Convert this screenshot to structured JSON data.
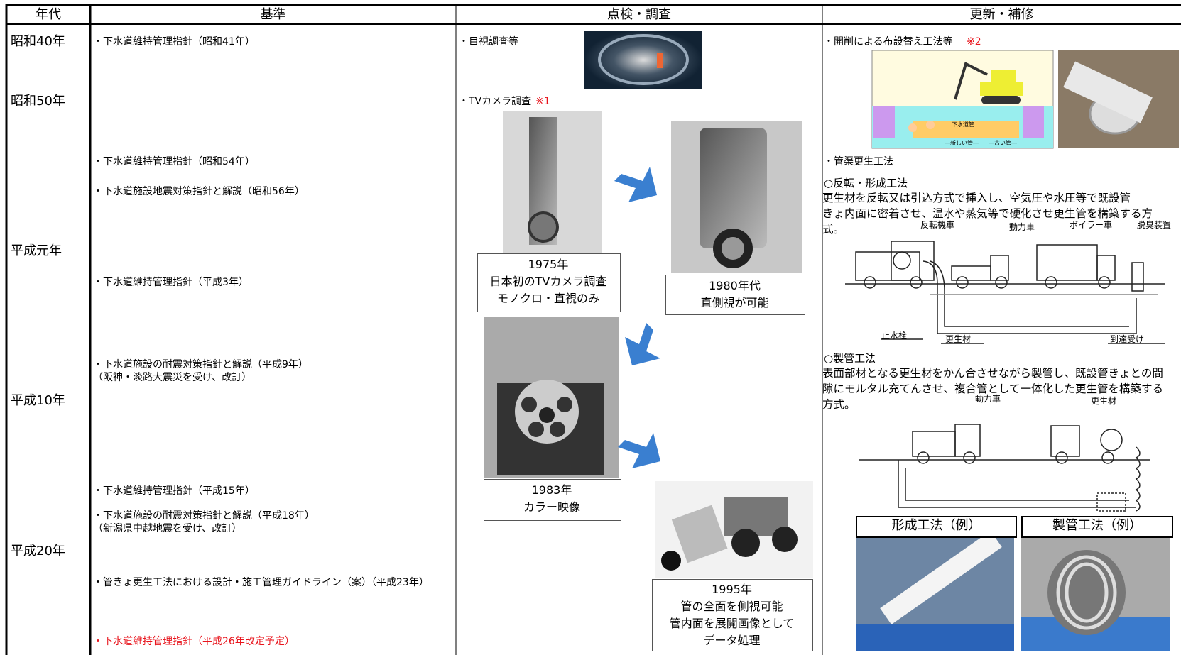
{
  "header": [
    "年代",
    "基準",
    "点検・調査",
    "更新・補修"
  ],
  "eras": [
    "昭和40年",
    "昭和50年",
    "平成元年",
    "平成10年",
    "平成20年"
  ],
  "standards": [
    [
      "・下水道維持管理指針（昭和41年）"
    ],
    [
      "・下水道維持管理指針（昭和54年）"
    ],
    [
      "・下水道施設地震対策指針と解説（昭和56年）"
    ],
    [
      "・下水道維持管理指針（平成3年）"
    ],
    [
      "・下水道施設の耐震対策指針と解説（平成9年）",
      "（阪神・淡路大震災を受け、改訂）"
    ],
    [
      "・下水道維持管理指針（平成15年）"
    ],
    [
      "・下水道施設の耐震対策指針と解説（平成18年）",
      "（新潟県中越地震を受け、改訂）"
    ],
    [
      "・管きょ更生工法における設計・施工管理ガイドライン（案）（平成23年）"
    ]
  ],
  "planned_standard": "・下水道維持管理指針（平成26年改定予定）",
  "inspection": {
    "visual": "・目視調査等",
    "tv_camera": {
      "label": "・TVカメラ調査",
      "note": "※1"
    },
    "cameras": [
      [
        "1975年",
        "日本初のTVカメラ調査",
        "モノクロ・直視のみ"
      ],
      [
        "1980年代",
        "直側視が可能"
      ],
      [
        "1983年",
        "カラー映像"
      ],
      [
        "1995年",
        "管の全面を側視可能",
        "管内面を展開画像として",
        "データ処理"
      ]
    ]
  },
  "renewal": {
    "open_cut": {
      "label": "・開削による布設替え工法等",
      "note": "※2"
    },
    "open_cut_figure": [
      "下水道管",
      "―新しい管―",
      "―古い管―"
    ],
    "rehab": "・管渠更生工法",
    "methods": [
      {
        "name": "○反転・形成工法",
        "lines": [
          "更生材を反転又は引込方式で挿入し、空気圧や水圧等で既設管",
          "きょ内面に密着させ、温水や蒸気等で硬化させ更生管を構築する方",
          "式。"
        ],
        "labels": [
          "反転機車",
          "動力車",
          "ボイラー車",
          "脱臭装置",
          "止水栓",
          "更生材",
          "到達受け"
        ]
      },
      {
        "name": "○製管工法",
        "lines": [
          "表面部材となる更生材をかん合させながら製管し、既設管きょとの間",
          "隙にモルタル充てんさせ、複合管として一体化した更生管を構築する",
          "方式。"
        ],
        "labels": [
          "動力車",
          "更生材"
        ]
      }
    ],
    "examples": [
      "形成工法（例）",
      "製管工法（例）"
    ]
  }
}
